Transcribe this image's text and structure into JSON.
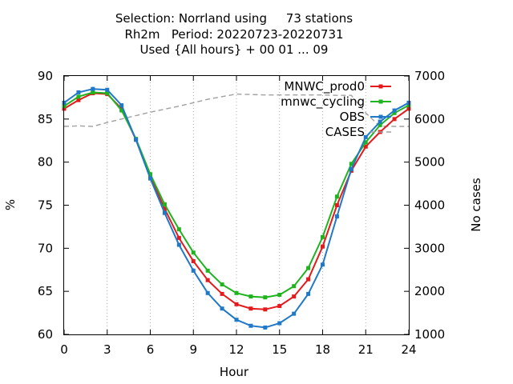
{
  "chart_data": {
    "type": "line",
    "title_lines": [
      "Selection: Norrland using     73 stations",
      "Rh2m   Period: 20220723-20220731",
      "Used {All hours} + 00 01 ... 09"
    ],
    "xlabel": "Hour",
    "ylabel": "%",
    "y2label": "No cases",
    "xlim": [
      0,
      24
    ],
    "ylim": [
      60,
      90
    ],
    "y2lim": [
      1000,
      7000
    ],
    "xticks": [
      "0",
      "3",
      "6",
      "9",
      "12",
      "15",
      "18",
      "21",
      "24"
    ],
    "yticks": [
      "60",
      "65",
      "70",
      "75",
      "80",
      "85",
      "90"
    ],
    "y2ticks": [
      "1000",
      "2000",
      "3000",
      "4000",
      "5000",
      "6000",
      "7000"
    ],
    "grid": "vertical dotted lines at x ticks",
    "legend_position": "top-right",
    "x": [
      0,
      1,
      2,
      3,
      4,
      5,
      6,
      7,
      8,
      9,
      10,
      11,
      12,
      13,
      14,
      15,
      16,
      17,
      18,
      19,
      20,
      21,
      22,
      23,
      24
    ],
    "series": [
      {
        "name": "MNWC_prod0",
        "color": "#e41a1c",
        "axis": "y",
        "marker": true,
        "dash": false,
        "values": [
          86.2,
          87.2,
          88.0,
          87.9,
          86.2,
          82.6,
          78.3,
          74.6,
          71.2,
          68.5,
          66.3,
          64.7,
          63.5,
          63.0,
          62.9,
          63.3,
          64.4,
          66.4,
          70.2,
          75.0,
          79.0,
          81.8,
          83.5,
          85.0,
          86.2
        ]
      },
      {
        "name": "mnwc_cycling",
        "color": "#1fb41f",
        "axis": "y",
        "marker": true,
        "dash": false,
        "values": [
          86.5,
          87.6,
          88.1,
          88.0,
          86.0,
          82.7,
          78.6,
          75.1,
          72.2,
          69.5,
          67.4,
          65.8,
          64.8,
          64.4,
          64.3,
          64.6,
          65.6,
          67.7,
          71.3,
          76.0,
          79.8,
          82.3,
          84.3,
          85.7,
          86.6
        ]
      },
      {
        "name": "OBS",
        "color": "#1f78c8",
        "axis": "y",
        "marker": true,
        "dash": false,
        "values": [
          86.9,
          88.1,
          88.5,
          88.4,
          86.6,
          82.6,
          78.1,
          74.1,
          70.4,
          67.4,
          64.8,
          63.0,
          61.7,
          61.0,
          60.8,
          61.3,
          62.4,
          64.7,
          68.1,
          73.7,
          79.2,
          82.9,
          84.7,
          86.0,
          86.9
        ]
      },
      {
        "name": "CASES",
        "color": "#a0a0a0",
        "axis": "y2",
        "marker": false,
        "dash": true,
        "values": [
          5830,
          5840,
          5830,
          5920,
          6000,
          6080,
          6160,
          6230,
          6300,
          6380,
          6460,
          6520,
          6580,
          6570,
          6560,
          6560,
          6560,
          6560,
          6560,
          6550,
          6550,
          6140,
          5830,
          5830,
          5830
        ]
      }
    ]
  }
}
